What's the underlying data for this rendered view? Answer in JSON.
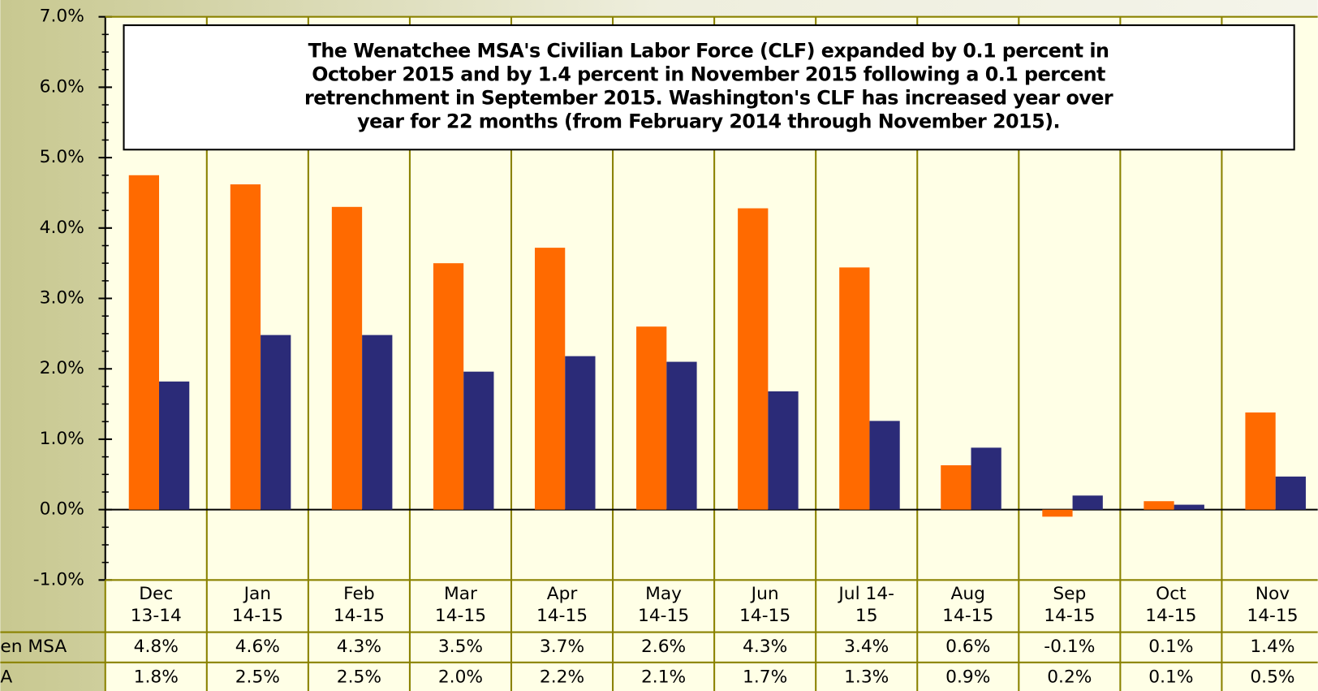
{
  "chart_data": {
    "type": "bar",
    "annotation_lines": [
      "The Wenatchee MSA's Civilian Labor Force (CLF) expanded by 0.1 percent in",
      "October 2015 and by 1.4 percent in November 2015 following a 0.1 percent",
      "retrenchment in September 2015. Washington's CLF has increased year over",
      "year for 22 months (from February 2014 through November 2015)."
    ],
    "categories": [
      "Dec\n13-14",
      "Jan\n14-15",
      "Feb\n14-15",
      "Mar\n14-15",
      "Apr\n14-15",
      "May\n14-15",
      "Jun\n14-15",
      "Jul 14-\n15",
      "Aug\n14-15",
      "Sep\n14-15",
      "Oct\n14-15",
      "Nov\n14-15"
    ],
    "series": [
      {
        "name": "en MSA",
        "color": "#ff6a00",
        "values": [
          4.75,
          4.62,
          4.3,
          3.5,
          3.72,
          2.6,
          4.28,
          3.44,
          0.63,
          -0.1,
          0.12,
          1.38
        ],
        "value_labels": [
          "4.8%",
          "4.6%",
          "4.3%",
          "3.5%",
          "3.7%",
          "2.6%",
          "4.3%",
          "3.4%",
          "0.6%",
          "-0.1%",
          "0.1%",
          "1.4%"
        ]
      },
      {
        "name": "A",
        "color": "#2b2b78",
        "values": [
          1.82,
          2.48,
          2.48,
          1.96,
          2.18,
          2.1,
          1.68,
          1.26,
          0.88,
          0.2,
          0.07,
          0.47
        ],
        "value_labels": [
          "1.8%",
          "2.5%",
          "2.5%",
          "2.0%",
          "2.2%",
          "2.1%",
          "1.7%",
          "1.3%",
          "0.9%",
          "0.2%",
          "0.1%",
          "0.5%"
        ]
      }
    ],
    "ylim": [
      -1,
      7
    ],
    "yticks": [
      {
        "value": -1,
        "label": "-1.0%"
      },
      {
        "value": 0,
        "label": "0.0%"
      },
      {
        "value": 1,
        "label": "1.0%"
      },
      {
        "value": 2,
        "label": "2.0%"
      },
      {
        "value": 3,
        "label": "3.0%"
      },
      {
        "value": 4,
        "label": "4.0%"
      },
      {
        "value": 5,
        "label": "5.0%"
      },
      {
        "value": 6,
        "label": "6.0%"
      },
      {
        "value": 7,
        "label": "7.0%"
      }
    ]
  }
}
